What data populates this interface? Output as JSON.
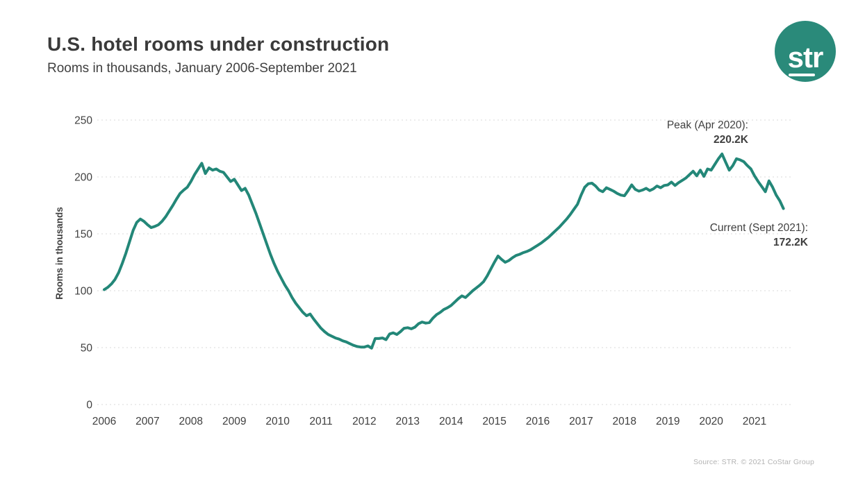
{
  "header": {
    "title": "U.S. hotel rooms under construction",
    "subtitle": "Rooms in thousands, January 2006-September 2021"
  },
  "logo": {
    "text": "str"
  },
  "brand": {
    "teal": "#2a8a7a"
  },
  "footer": {
    "source": "Source: STR. © 2021 CoStar Group"
  },
  "chart_data": {
    "type": "line",
    "title": "U.S. hotel rooms under construction",
    "subtitle": "Rooms in thousands, January 2006-September 2021",
    "ylabel": "Rooms in thousands",
    "xlabel": "",
    "x_ticks": [
      "2006",
      "2007",
      "2008",
      "2009",
      "2010",
      "2011",
      "2012",
      "2013",
      "2014",
      "2015",
      "2016",
      "2017",
      "2018",
      "2019",
      "2020",
      "2021"
    ],
    "yticks": [
      0,
      50,
      100,
      150,
      200,
      250
    ],
    "ylim": [
      0,
      250
    ],
    "grid": "horizontal-dotted",
    "legend": "none",
    "line_color": "#238778",
    "annotations": {
      "peak": {
        "label": "Peak (Apr 2020):",
        "value": "220.2K"
      },
      "current": {
        "label": "Current (Sept 2021):",
        "value": "172.2K"
      }
    },
    "series": [
      {
        "name": "U.S. hotel rooms under construction",
        "unit": "thousands of rooms",
        "start": "2006-01",
        "end": "2021-09",
        "frequency": "monthly",
        "values": [
          101,
          103,
          106,
          110,
          116,
          124,
          133,
          143,
          153,
          160,
          163,
          161,
          158,
          155.5,
          156.5,
          158,
          161,
          165,
          170,
          175,
          180.5,
          185.5,
          188.5,
          191,
          196,
          202,
          207,
          212,
          203,
          208,
          206,
          207,
          205,
          204,
          200,
          196,
          198,
          193,
          188,
          190,
          184,
          176,
          168,
          159,
          150,
          141,
          132,
          124,
          117,
          111,
          105,
          100,
          94,
          89,
          85,
          81,
          78,
          79.5,
          75,
          71,
          67,
          64,
          61.5,
          60,
          58.5,
          57.5,
          56,
          55,
          53.5,
          52,
          51,
          50.5,
          50.5,
          51.5,
          49.5,
          58,
          58,
          58.5,
          57,
          62,
          63,
          61.5,
          64,
          67,
          67.5,
          66.5,
          68,
          71,
          72.5,
          71.5,
          72,
          76,
          79,
          81,
          83.5,
          85,
          87,
          90,
          93,
          95.5,
          94,
          97,
          100,
          102.5,
          105,
          108,
          113,
          119,
          125,
          130.5,
          127.5,
          125,
          126.5,
          129,
          131,
          132,
          133.5,
          134.5,
          136,
          138,
          140,
          142,
          144.5,
          147,
          150,
          153,
          156,
          159.5,
          163,
          167,
          171.5,
          176,
          184,
          191,
          194,
          194.5,
          192,
          188.5,
          187,
          190.5,
          189,
          187.5,
          185.5,
          184,
          183.5,
          188,
          193,
          189,
          187.5,
          188.5,
          190,
          188,
          189.5,
          192,
          190.5,
          192.5,
          193,
          195.5,
          192.5,
          195,
          197,
          199,
          202,
          205,
          201,
          206,
          200.5,
          207,
          206,
          211,
          216,
          220.2,
          213,
          206,
          210,
          216,
          215,
          213.5,
          210,
          207,
          201,
          196,
          191.5,
          187,
          196.5,
          191,
          184,
          179,
          172.2
        ]
      }
    ]
  }
}
